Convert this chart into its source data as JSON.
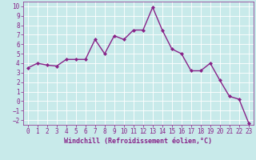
{
  "x": [
    0,
    1,
    2,
    3,
    4,
    5,
    6,
    7,
    8,
    9,
    10,
    11,
    12,
    13,
    14,
    15,
    16,
    17,
    18,
    19,
    20,
    21,
    22,
    23
  ],
  "y": [
    3.5,
    4.0,
    3.8,
    3.7,
    4.4,
    4.4,
    4.4,
    6.5,
    5.0,
    6.9,
    6.5,
    7.5,
    7.5,
    9.9,
    7.5,
    5.5,
    5.0,
    3.2,
    3.2,
    4.0,
    2.2,
    0.5,
    0.2,
    -2.3
  ],
  "line_color": "#882288",
  "marker": "D",
  "marker_size": 2.0,
  "bg_color": "#c8eaea",
  "grid_color": "#ffffff",
  "xlabel": "Windchill (Refroidissement éolien,°C)",
  "xlim": [
    -0.5,
    23.5
  ],
  "ylim": [
    -2.5,
    10.5
  ],
  "yticks": [
    -2,
    -1,
    0,
    1,
    2,
    3,
    4,
    5,
    6,
    7,
    8,
    9,
    10
  ],
  "xticks": [
    0,
    1,
    2,
    3,
    4,
    5,
    6,
    7,
    8,
    9,
    10,
    11,
    12,
    13,
    14,
    15,
    16,
    17,
    18,
    19,
    20,
    21,
    22,
    23
  ],
  "tick_color": "#882288",
  "label_color": "#882288",
  "tick_fontsize": 5.5,
  "xlabel_fontsize": 6.0,
  "linewidth": 1.0
}
